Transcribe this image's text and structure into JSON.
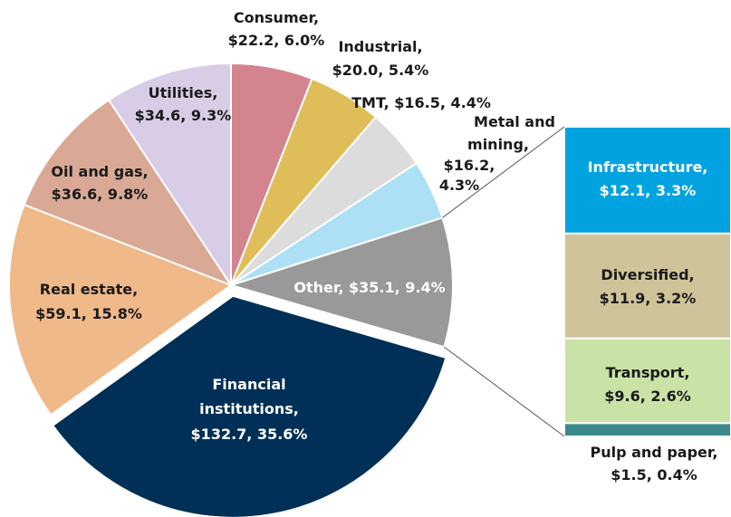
{
  "chart_data": {
    "type": "pie",
    "categories": [
      "Consumer",
      "Industrial",
      "TMT",
      "Metal and mining",
      "Other",
      "Financial institutions",
      "Real estate",
      "Oil and gas",
      "Utilities"
    ],
    "values": [
      22.2,
      20.0,
      16.5,
      16.2,
      35.1,
      132.7,
      59.1,
      36.6,
      34.6
    ],
    "value_labels": [
      "Consumer, $22.2, 6.0%",
      "Industrial, $20.0, 5.4%",
      "TMT, $16.5, 4.4%",
      "Metal and mining, $16.2, 4.3%",
      "Other, $35.1, 9.4%",
      "Financial institutions, $132.7, 35.6%",
      "Real estate, $59.1, 15.8%",
      "Oil and gas, $36.6, 9.8%",
      "Utilities, $34.6, 9.3%"
    ],
    "colors": [
      "#d4848f",
      "#dfbe5a",
      "#dcdcdc",
      "#aee0f5",
      "#999999",
      "#003057",
      "#f0b98a",
      "#d9a996",
      "#d9cce6"
    ],
    "breakdown": {
      "categories": [
        "Infrastructure",
        "Diversified",
        "Transport",
        "Pulp and paper"
      ],
      "values": [
        12.1,
        11.9,
        9.6,
        1.5
      ],
      "value_labels": [
        "Infrastructure, $12.1, 3.3%",
        "Diversified, $11.9, 3.2%",
        "Transport, $9.6, 2.6%",
        "Pulp and paper, $1.5, 0.4%"
      ],
      "colors": [
        "#00a3e0",
        "#cfc39a",
        "#c9e2a6",
        "#3a8a8c"
      ]
    }
  }
}
